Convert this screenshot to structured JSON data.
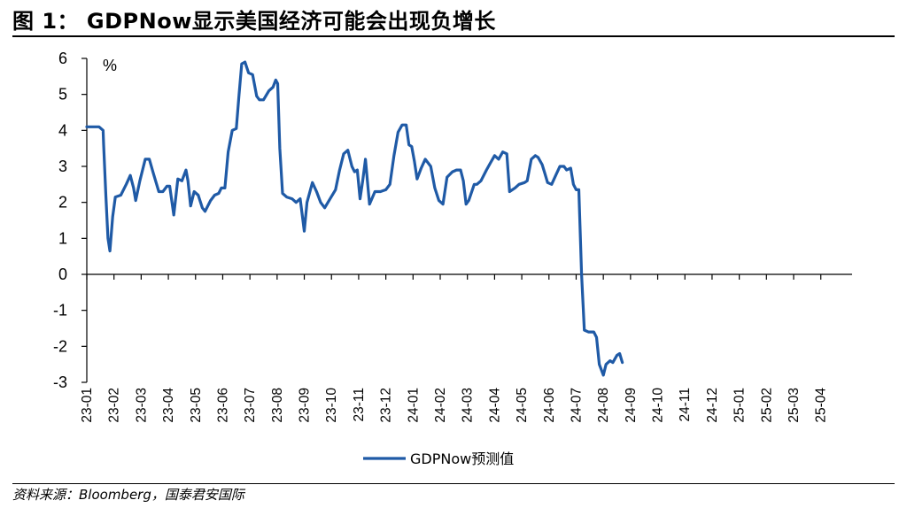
{
  "header": {
    "title": "图 1：  GDPNow显示美国经济可能会出现负增长"
  },
  "footer": {
    "source": "资料来源：Bloomberg，国泰君安国际"
  },
  "colors": {
    "series": "#1f5aa6",
    "axis": "#000000"
  },
  "chart_data": {
    "type": "line",
    "title": "",
    "unit_label": "%",
    "xlabel": "",
    "ylabel": "",
    "ylim": [
      -3,
      6
    ],
    "yticks": [
      6,
      5,
      4,
      3,
      2,
      1,
      0,
      -1,
      -2,
      -3
    ],
    "x_categories": [
      "23-01",
      "23-02",
      "23-03",
      "23-04",
      "23-05",
      "23-06",
      "23-07",
      "23-08",
      "23-09",
      "23-10",
      "23-11",
      "23-12",
      "24-01",
      "24-02",
      "24-03",
      "24-04",
      "24-05",
      "24-06",
      "24-07",
      "24-08",
      "24-09",
      "24-10",
      "24-11",
      "24-12",
      "25-01",
      "25-02",
      "25-03",
      "25-04"
    ],
    "legend": {
      "position": "bottom",
      "entries": [
        "GDPNow预测值"
      ]
    },
    "grid": false,
    "series": [
      {
        "name": "GDPNow预测值",
        "points": [
          [
            0.0,
            4.1
          ],
          [
            0.45,
            4.1
          ],
          [
            0.6,
            4.0
          ],
          [
            0.62,
            3.6
          ],
          [
            0.7,
            2.2
          ],
          [
            0.78,
            1.0
          ],
          [
            0.85,
            0.65
          ],
          [
            0.95,
            1.6
          ],
          [
            1.05,
            2.15
          ],
          [
            1.25,
            2.2
          ],
          [
            1.45,
            2.5
          ],
          [
            1.6,
            2.75
          ],
          [
            1.72,
            2.4
          ],
          [
            1.8,
            2.05
          ],
          [
            1.95,
            2.6
          ],
          [
            2.15,
            3.2
          ],
          [
            2.3,
            3.2
          ],
          [
            2.45,
            2.8
          ],
          [
            2.65,
            2.3
          ],
          [
            2.8,
            2.3
          ],
          [
            2.95,
            2.45
          ],
          [
            3.05,
            2.45
          ],
          [
            3.2,
            1.65
          ],
          [
            3.35,
            2.65
          ],
          [
            3.5,
            2.6
          ],
          [
            3.65,
            2.9
          ],
          [
            3.72,
            2.6
          ],
          [
            3.82,
            1.9
          ],
          [
            3.95,
            2.3
          ],
          [
            4.1,
            2.2
          ],
          [
            4.25,
            1.85
          ],
          [
            4.35,
            1.75
          ],
          [
            4.55,
            2.05
          ],
          [
            4.7,
            2.2
          ],
          [
            4.85,
            2.25
          ],
          [
            4.95,
            2.4
          ],
          [
            5.08,
            2.4
          ],
          [
            5.2,
            3.4
          ],
          [
            5.35,
            4.0
          ],
          [
            5.5,
            4.05
          ],
          [
            5.6,
            5.0
          ],
          [
            5.7,
            5.85
          ],
          [
            5.82,
            5.9
          ],
          [
            5.95,
            5.6
          ],
          [
            6.1,
            5.55
          ],
          [
            6.25,
            4.95
          ],
          [
            6.35,
            4.85
          ],
          [
            6.5,
            4.85
          ],
          [
            6.7,
            5.1
          ],
          [
            6.85,
            5.2
          ],
          [
            6.95,
            5.4
          ],
          [
            7.02,
            5.3
          ],
          [
            7.1,
            3.5
          ],
          [
            7.2,
            2.25
          ],
          [
            7.35,
            2.15
          ],
          [
            7.55,
            2.1
          ],
          [
            7.7,
            2.0
          ],
          [
            7.85,
            2.1
          ],
          [
            7.95,
            1.5
          ],
          [
            8.0,
            1.2
          ],
          [
            8.1,
            2.0
          ],
          [
            8.3,
            2.55
          ],
          [
            8.45,
            2.3
          ],
          [
            8.6,
            2.0
          ],
          [
            8.75,
            1.85
          ],
          [
            8.95,
            2.1
          ],
          [
            9.15,
            2.35
          ],
          [
            9.3,
            2.9
          ],
          [
            9.45,
            3.35
          ],
          [
            9.6,
            3.45
          ],
          [
            9.75,
            3.0
          ],
          [
            9.85,
            2.85
          ],
          [
            9.95,
            2.9
          ],
          [
            10.05,
            2.1
          ],
          [
            10.15,
            2.6
          ],
          [
            10.25,
            3.2
          ],
          [
            10.35,
            2.35
          ],
          [
            10.4,
            1.95
          ],
          [
            10.6,
            2.3
          ],
          [
            10.8,
            2.3
          ],
          [
            11.0,
            2.35
          ],
          [
            11.15,
            2.5
          ],
          [
            11.3,
            3.3
          ],
          [
            11.45,
            3.95
          ],
          [
            11.6,
            4.15
          ],
          [
            11.75,
            4.15
          ],
          [
            11.85,
            3.6
          ],
          [
            11.95,
            3.55
          ],
          [
            12.05,
            3.15
          ],
          [
            12.15,
            2.65
          ],
          [
            12.3,
            2.95
          ],
          [
            12.45,
            3.2
          ],
          [
            12.65,
            3.0
          ],
          [
            12.8,
            2.4
          ],
          [
            12.95,
            2.05
          ],
          [
            13.1,
            1.95
          ],
          [
            13.25,
            2.7
          ],
          [
            13.45,
            2.85
          ],
          [
            13.6,
            2.9
          ],
          [
            13.75,
            2.9
          ],
          [
            13.85,
            2.6
          ],
          [
            13.95,
            1.95
          ],
          [
            14.05,
            2.05
          ],
          [
            14.25,
            2.5
          ],
          [
            14.35,
            2.5
          ],
          [
            14.5,
            2.6
          ],
          [
            14.7,
            2.9
          ],
          [
            14.85,
            3.1
          ],
          [
            15.0,
            3.3
          ],
          [
            15.15,
            3.2
          ],
          [
            15.3,
            3.4
          ],
          [
            15.45,
            3.35
          ],
          [
            15.55,
            2.3
          ],
          [
            15.75,
            2.4
          ],
          [
            15.9,
            2.5
          ],
          [
            16.1,
            2.55
          ],
          [
            16.2,
            2.6
          ],
          [
            16.35,
            3.2
          ],
          [
            16.5,
            3.3
          ],
          [
            16.6,
            3.25
          ],
          [
            16.75,
            3.05
          ],
          [
            16.85,
            2.8
          ],
          [
            16.95,
            2.55
          ],
          [
            17.1,
            2.5
          ],
          [
            17.25,
            2.75
          ],
          [
            17.4,
            3.0
          ],
          [
            17.55,
            3.0
          ],
          [
            17.65,
            2.9
          ],
          [
            17.8,
            2.95
          ],
          [
            17.9,
            2.5
          ],
          [
            18.0,
            2.35
          ],
          [
            18.1,
            2.35
          ],
          [
            18.2,
            0.0
          ],
          [
            18.3,
            -1.55
          ],
          [
            18.45,
            -1.6
          ],
          [
            18.65,
            -1.6
          ],
          [
            18.75,
            -1.75
          ],
          [
            18.85,
            -2.5
          ],
          [
            19.0,
            -2.8
          ],
          [
            19.1,
            -2.5
          ],
          [
            19.25,
            -2.4
          ],
          [
            19.35,
            -2.45
          ],
          [
            19.5,
            -2.25
          ],
          [
            19.6,
            -2.2
          ],
          [
            19.7,
            -2.45
          ]
        ]
      }
    ]
  }
}
